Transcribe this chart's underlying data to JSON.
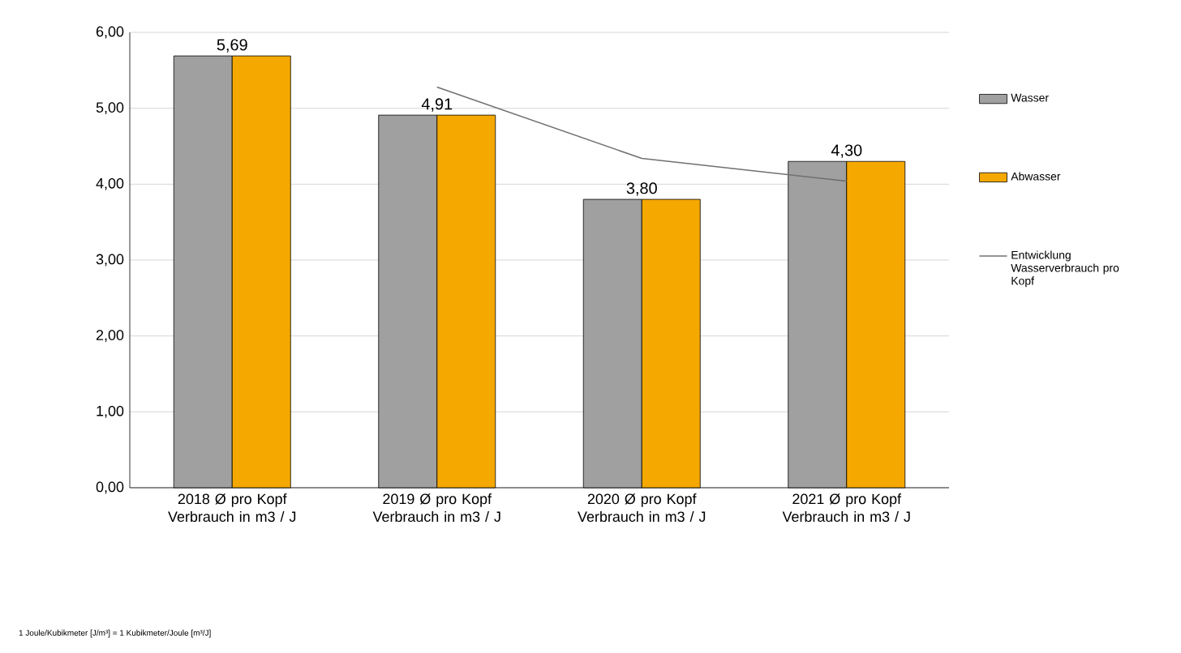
{
  "chart_data": {
    "type": "bar",
    "categories": [
      "2018 Ø pro Kopf Verbrauch in m3 / J",
      "2019 Ø pro Kopf Verbrauch in m3 / J",
      "2020 Ø pro Kopf Verbrauch in m3 / J",
      "2021 Ø pro Kopf Verbrauch in m3 / J"
    ],
    "series": [
      {
        "name": "Wasser",
        "color": "#a0a0a0",
        "values": [
          5.69,
          4.91,
          3.8,
          4.3
        ],
        "value_labels": [
          "5,69",
          "4,91",
          "3,80",
          "4,30"
        ]
      },
      {
        "name": "Abwasser",
        "color": "#f5a800",
        "values": [
          5.69,
          4.91,
          3.8,
          4.3
        ]
      },
      {
        "name": "Entwicklung Wasserverbrauch pro Kopf",
        "type": "line",
        "color": "#707070",
        "values": [
          null,
          5.28,
          4.34,
          4.04
        ]
      }
    ],
    "ylim": [
      0,
      6
    ],
    "yticks": [
      {
        "value": 0,
        "label": "0,00"
      },
      {
        "value": 1,
        "label": "1,00"
      },
      {
        "value": 2,
        "label": "2,00"
      },
      {
        "value": 3,
        "label": "3,00"
      },
      {
        "value": 4,
        "label": "4,00"
      },
      {
        "value": 5,
        "label": "5,00"
      },
      {
        "value": 6,
        "label": "6,00"
      }
    ],
    "grid": "y",
    "legend": "right",
    "annotations": [
      "1 Joule/Kubikmeter [J/m³] = 1 Kubikmeter/Joule [m³/J]"
    ]
  }
}
